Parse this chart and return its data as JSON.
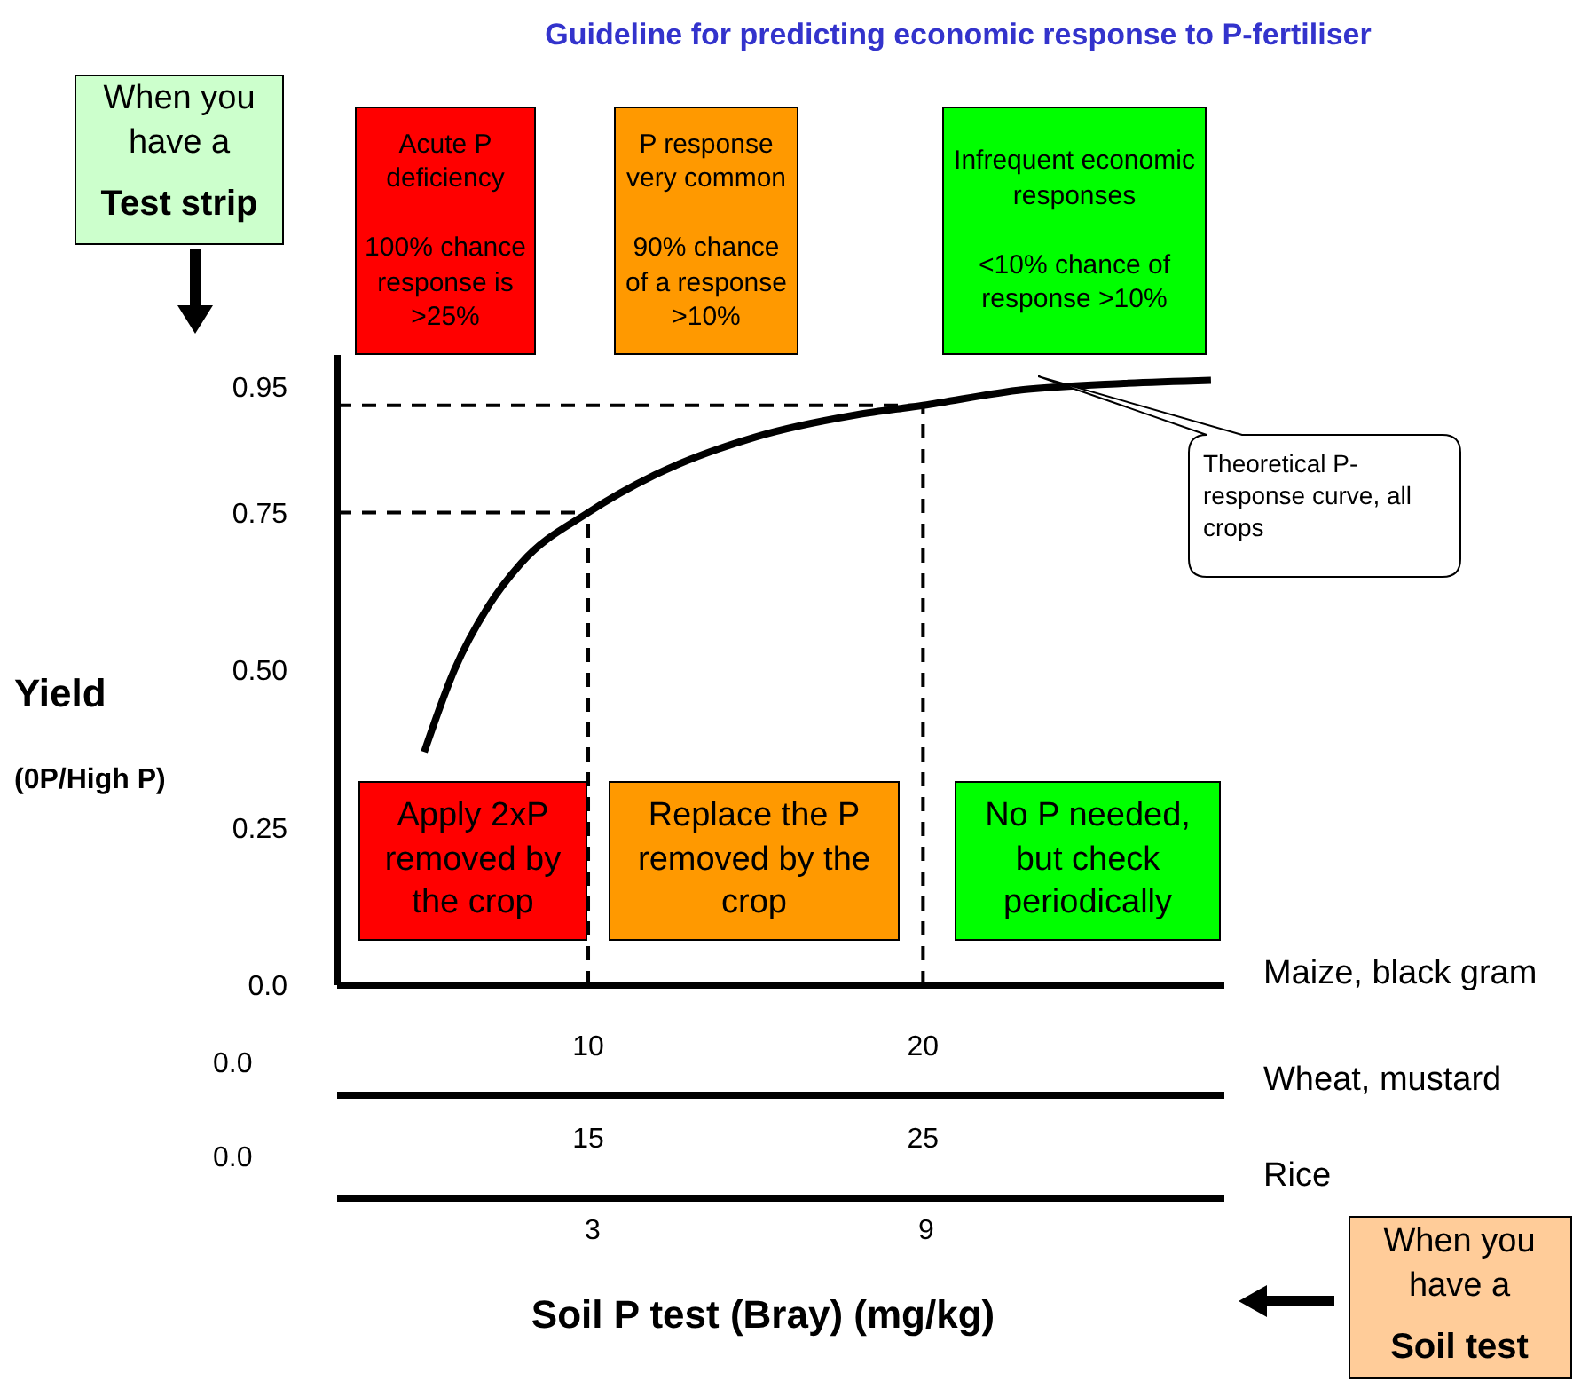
{
  "chart_data": {
    "type": "line",
    "title": "Guideline for predicting economic response to P-fertiliser",
    "xlabel": "Soil P test (Bray) (mg/kg)",
    "ylabel": "Yield",
    "annotations": [
      "Acute P deficiency\n\n100% chance response  is >25%",
      "P response very common\n\n90% chance of a response >10%",
      "Infrequent economic responses\n\n<10% chance of response >10%",
      "Apply 2xP removed by the crop",
      "Replace the P removed by the crop",
      "No P needed, but check periodically",
      "Theoretical P-response curve, all crops",
      "When you have a",
      "Test strip",
      "When you have a",
      "Soil test",
      "(0P/High P)",
      "Maize, black gram",
      "Wheat, mustard",
      "Rice",
      "0.0",
      "0.0",
      "3",
      "9"
    ],
    "x": [
      5.1,
      6,
      7,
      8,
      10,
      12,
      15,
      18,
      20,
      23,
      26,
      28.6
    ],
    "series": [
      {
        "color": "#000000",
        "values": [
          0.37,
          0.5,
          0.6,
          0.67,
          0.75,
          0.81,
          0.87,
          0.905,
          0.92,
          0.945,
          0.955,
          0.96
        ]
      }
    ],
    "xlim": [
      2.5,
      29
    ],
    "xticks": [
      10,
      20
    ],
    "x2lim": [
      7.5,
      34
    ],
    "x2ticks": [
      15,
      25
    ],
    "ylim": [
      0,
      1
    ],
    "yticks": [
      {
        "value": 0,
        "label": "0.0"
      },
      0.25,
      {
        "value": 0.5,
        "label": "0.50"
      },
      0.75,
      0.95
    ],
    "ref_lines": [
      {
        "axis": "x",
        "value": 10,
        "line_style": "dashed"
      },
      {
        "axis": "x",
        "value": 20,
        "line_style": "dashed"
      },
      {
        "axis": "y",
        "value": 0.75,
        "line_style": "dashed"
      },
      {
        "axis": "y",
        "value": 0.92,
        "line_style": "dashed"
      }
    ],
    "marker": "none",
    "line_style": "solid"
  }
}
